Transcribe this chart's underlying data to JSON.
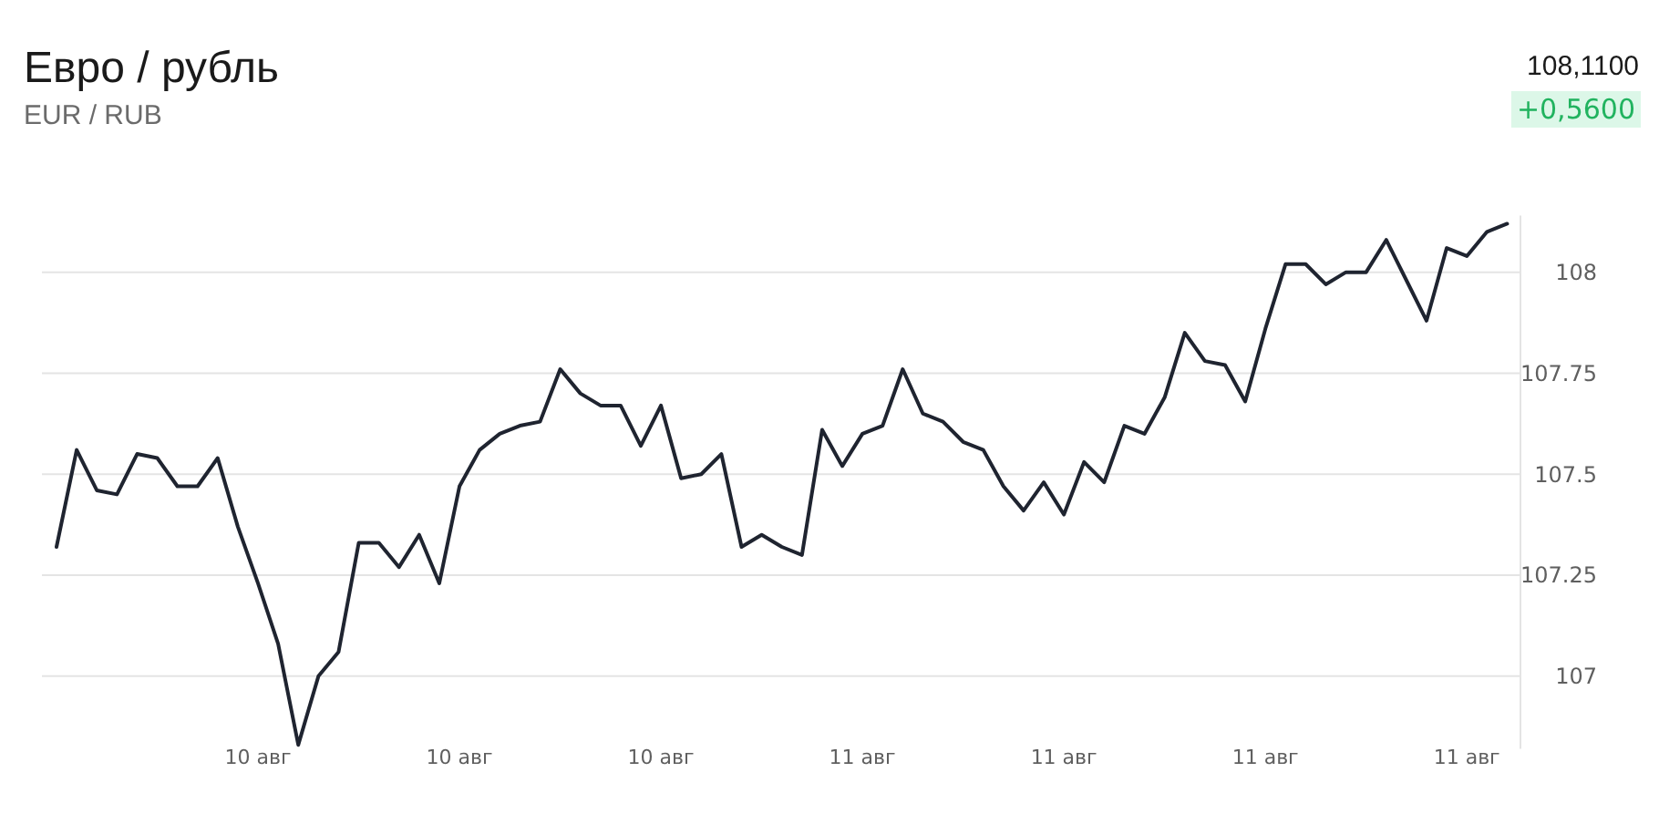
{
  "chart_data": {
    "type": "line",
    "title": "Евро / рубль",
    "subtitle": "EUR / RUB",
    "annotations": [
      "108,1100",
      "+0,5600"
    ],
    "categories": [
      null,
      null,
      null,
      null,
      null,
      null,
      null,
      null,
      null,
      null,
      "10 авг",
      null,
      null,
      null,
      null,
      null,
      null,
      null,
      null,
      null,
      "10 авг",
      null,
      null,
      null,
      null,
      null,
      null,
      null,
      null,
      null,
      "10 авг",
      null,
      null,
      null,
      null,
      null,
      null,
      null,
      null,
      null,
      "11 авг",
      null,
      null,
      null,
      null,
      null,
      null,
      null,
      null,
      null,
      "11 авг",
      null,
      null,
      null,
      null,
      null,
      null,
      null,
      null,
      null,
      "11 авг",
      null,
      null,
      null,
      null,
      null,
      null,
      null,
      null,
      null,
      "11 авг",
      null,
      null
    ],
    "series": [
      {
        "color": "#1f2430",
        "values": [
          107.32,
          107.56,
          107.46,
          107.45,
          107.55,
          107.54,
          107.47,
          107.47,
          107.54,
          107.37,
          107.23,
          107.08,
          106.83,
          107.0,
          107.06,
          107.33,
          107.33,
          107.27,
          107.35,
          107.23,
          107.47,
          107.56,
          107.6,
          107.62,
          107.63,
          107.76,
          107.7,
          107.67,
          107.67,
          107.57,
          107.67,
          107.49,
          107.5,
          107.55,
          107.32,
          107.35,
          107.32,
          107.3,
          107.61,
          107.52,
          107.6,
          107.62,
          107.76,
          107.65,
          107.63,
          107.58,
          107.56,
          107.47,
          107.41,
          107.48,
          107.4,
          107.53,
          107.48,
          107.62,
          107.6,
          107.69,
          107.85,
          107.78,
          107.77,
          107.68,
          107.86,
          108.02,
          108.02,
          107.97,
          108.0,
          108.0,
          108.08,
          107.98,
          107.88,
          108.06,
          108.04,
          108.1,
          108.12
        ]
      }
    ],
    "ylim": [
      106.82,
      108.14
    ],
    "yticks": [
      107,
      107.25,
      107.5,
      107.75,
      108
    ],
    "grid": "y"
  }
}
